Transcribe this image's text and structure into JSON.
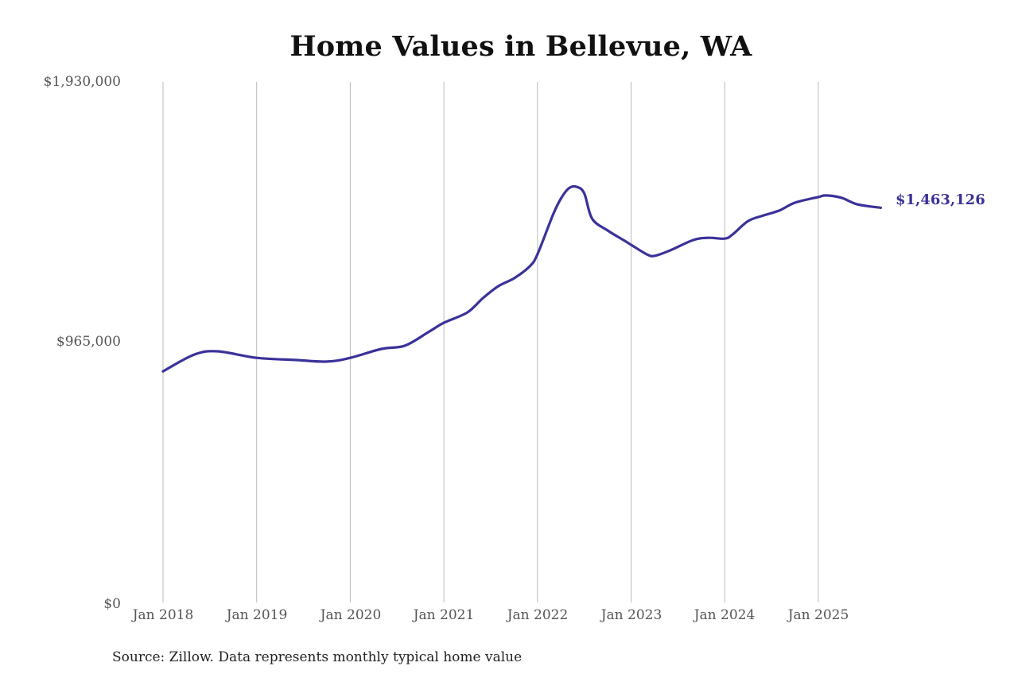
{
  "chart": {
    "title": "Home Values in Bellevue, WA",
    "source_note": "Source: Zillow. Data represents monthly typical home value",
    "end_label": "$1,463,126",
    "colors": {
      "line": "#3a3299",
      "grid": "#bbbbbb",
      "end_label": "#3a3299"
    },
    "y_ticks": [
      "$1,930,000",
      "$965,000",
      "$0"
    ],
    "x_ticks": [
      "Jan 2018",
      "Jan 2019",
      "Jan 2020",
      "Jan 2021",
      "Jan 2022",
      "Jan 2023",
      "Jan 2024",
      "Jan 2025"
    ]
  },
  "chart_data": {
    "type": "line",
    "title": "Home Values in Bellevue, WA",
    "xlabel": "",
    "ylabel": "",
    "ylim": [
      0,
      1930000
    ],
    "y_ticks": [
      0,
      965000,
      1930000
    ],
    "y_tick_labels": [
      "$0",
      "$965,000",
      "$1,930,000"
    ],
    "x_tick_labels": [
      "Jan 2018",
      "Jan 2019",
      "Jan 2020",
      "Jan 2021",
      "Jan 2022",
      "Jan 2023",
      "Jan 2024",
      "Jan 2025"
    ],
    "grid": {
      "vertical": true,
      "horizontal": false
    },
    "legend": null,
    "annotations": [
      {
        "text": "$1,463,126",
        "position": "end of line"
      }
    ],
    "source": "Source: Zillow. Data represents monthly typical home value",
    "series": [
      {
        "name": "Typical home value",
        "x": [
          "2018-01",
          "2018-05",
          "2018-08",
          "2019-01",
          "2019-06",
          "2019-10",
          "2020-01",
          "2020-05",
          "2020-08",
          "2020-11",
          "2021-01",
          "2021-04",
          "2021-06",
          "2021-08",
          "2021-10",
          "2021-12",
          "2022-01",
          "2022-03",
          "2022-04",
          "2022-05",
          "2022-06",
          "2022-07",
          "2022-08",
          "2022-10",
          "2022-12",
          "2023-01",
          "2023-03",
          "2023-04",
          "2023-06",
          "2023-09",
          "2023-11",
          "2024-01",
          "2024-02",
          "2024-04",
          "2024-06",
          "2024-08",
          "2024-10",
          "2025-01",
          "2025-02",
          "2025-04",
          "2025-06",
          "2025-09"
        ],
        "values": [
          857000,
          919000,
          931000,
          907000,
          899000,
          893000,
          907000,
          940000,
          952000,
          1002000,
          1037000,
          1075000,
          1128000,
          1173000,
          1202000,
          1246000,
          1291000,
          1438000,
          1497000,
          1535000,
          1541000,
          1517000,
          1423000,
          1379000,
          1344000,
          1326000,
          1291000,
          1285000,
          1305000,
          1344000,
          1352000,
          1349000,
          1364000,
          1414000,
          1435000,
          1453000,
          1482000,
          1503000,
          1509000,
          1500000,
          1476000,
          1463126
        ]
      }
    ]
  }
}
